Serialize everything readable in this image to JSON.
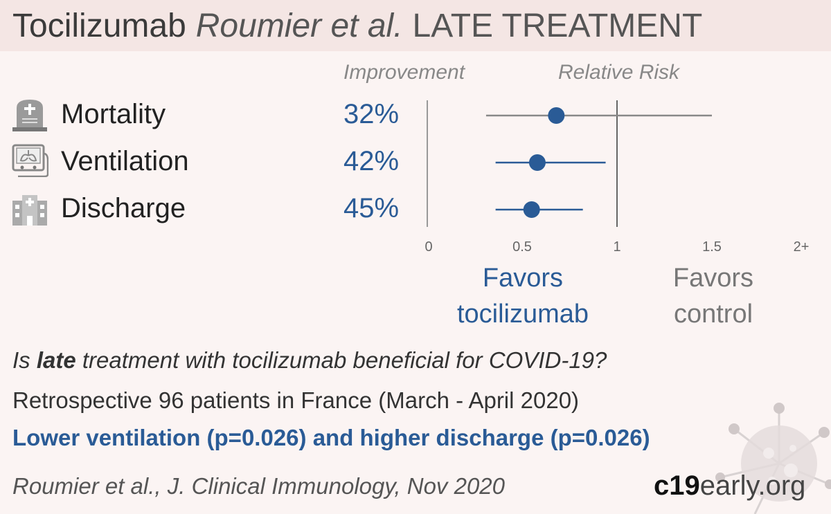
{
  "header": {
    "drug": "Tocilizumab",
    "authors": "Roumier et al.",
    "stage": "LATE TREATMENT"
  },
  "columns": {
    "improvement": "Improvement",
    "relative_risk": "Relative Risk"
  },
  "chart_data": {
    "type": "forest",
    "outcomes": [
      {
        "name": "Mortality",
        "icon": "tombstone-icon",
        "improvement": "32%",
        "rr": 0.68,
        "ci": [
          0.31,
          1.5
        ]
      },
      {
        "name": "Ventilation",
        "icon": "ventilator-icon",
        "improvement": "42%",
        "rr": 0.58,
        "ci": [
          0.36,
          0.94
        ]
      },
      {
        "name": "Discharge",
        "icon": "hospital-icon",
        "improvement": "45%",
        "rr": 0.55,
        "ci": [
          0.36,
          0.82
        ]
      }
    ],
    "x_ticks": [
      "0",
      "0.5",
      "1",
      "1.5",
      "2+"
    ],
    "xlim": [
      0,
      2
    ],
    "reference_line": 1,
    "favors_left": "Favors tocilizumab",
    "favors_right": "Favors control",
    "colors": {
      "point": "#2a5b96",
      "ci_significant": "#2a5b96",
      "ci_nonsignificant": "#888888",
      "axis": "#999999"
    }
  },
  "favors": {
    "left_line1": "Favors",
    "left_line2": "tocilizumab",
    "right_line1": "Favors",
    "right_line2": "control"
  },
  "summary": {
    "question_pre": "Is ",
    "question_bold": "late",
    "question_post": " treatment with tocilizumab beneficial for COVID-19?",
    "design": "Retrospective 96 patients in France (March - April 2020)",
    "result": "Lower ventilation (p=0.026) and higher discharge (p=0.026)",
    "citation": "Roumier et al., J. Clinical Immunology, Nov 2020"
  },
  "brand": {
    "part1": "c19",
    "part2": "early",
    "part3": ".org"
  },
  "colors": {
    "header_bg": "#f4e6e4",
    "page_bg": "#fbf4f3",
    "accent": "#2a5b96"
  }
}
